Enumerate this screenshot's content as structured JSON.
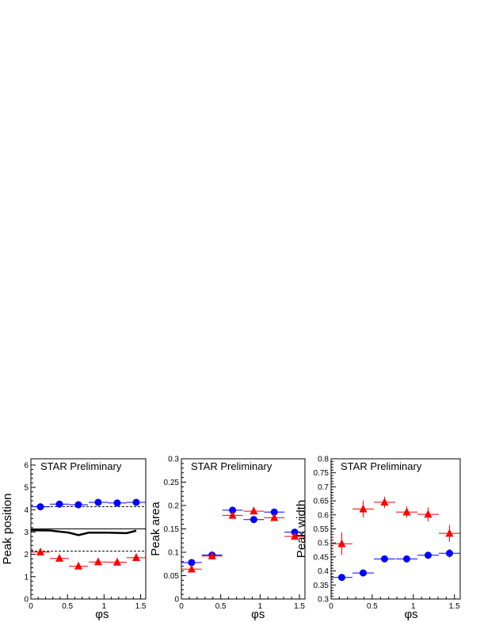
{
  "chart_data": [
    {
      "type": "scatter",
      "label": "STAR Preliminary",
      "ylabel": "Peak position",
      "xlabel": "φs",
      "xlim": [
        0,
        1.57
      ],
      "ylim": [
        0,
        6.28
      ],
      "xticks": [
        "0",
        "0.5",
        "1",
        "1.5"
      ],
      "yticks": [
        "0",
        "1",
        "2",
        "3",
        "4",
        "5",
        "6"
      ],
      "series": [
        {
          "marker": "circle",
          "color": "#0000ff",
          "x": [
            0.13,
            0.39,
            0.65,
            0.92,
            1.18,
            1.44
          ],
          "y": [
            4.13,
            4.25,
            4.22,
            4.33,
            4.3,
            4.33
          ],
          "xerr": 0.13,
          "yerr": [
            0.06,
            0.06,
            0.06,
            0.06,
            0.06,
            0.06
          ]
        },
        {
          "marker": "triangle",
          "color": "#ff0000",
          "x": [
            0.13,
            0.39,
            0.65,
            0.92,
            1.18,
            1.44
          ],
          "y": [
            2.1,
            1.82,
            1.47,
            1.66,
            1.65,
            1.85
          ],
          "xerr": 0.13,
          "yerr": [
            0.06,
            0.06,
            0.06,
            0.06,
            0.06,
            0.06
          ]
        }
      ],
      "reference_lines": [
        {
          "y": 3.14,
          "style": "solid",
          "color": "#000000"
        },
        {
          "y": 4.14,
          "style": "dashed",
          "color": "#000000"
        },
        {
          "y": 2.14,
          "style": "dashed",
          "color": "#000000"
        }
      ],
      "curve": {
        "color": "#000000",
        "x": [
          0.0,
          0.26,
          0.52,
          0.65,
          0.79,
          1.05,
          1.31,
          1.44
        ],
        "y": [
          3.08,
          3.07,
          2.97,
          2.86,
          2.97,
          2.97,
          2.95,
          3.06
        ]
      }
    },
    {
      "type": "scatter",
      "label": "STAR Preliminary",
      "ylabel": "Peak area",
      "xlabel": "φs",
      "xlim": [
        0,
        1.57
      ],
      "ylim": [
        0,
        0.3
      ],
      "xticks": [
        "0",
        "0.5",
        "1",
        "1.5"
      ],
      "yticks": [
        "0",
        "0.05",
        "0.1",
        "0.15",
        "0.2",
        "0.25",
        "0.3"
      ],
      "series": [
        {
          "marker": "circle",
          "color": "#0000ff",
          "x": [
            0.13,
            0.39,
            0.65,
            0.92,
            1.18,
            1.44
          ],
          "y": [
            0.078,
            0.094,
            0.19,
            0.17,
            0.186,
            0.143
          ],
          "xerr": 0.13,
          "yerr": [
            0.003,
            0.003,
            0.003,
            0.003,
            0.003,
            0.003
          ]
        },
        {
          "marker": "triangle",
          "color": "#ff0000",
          "x": [
            0.13,
            0.39,
            0.65,
            0.92,
            1.18,
            1.44
          ],
          "y": [
            0.064,
            0.092,
            0.179,
            0.188,
            0.174,
            0.134
          ],
          "xerr": 0.13,
          "yerr": [
            0.003,
            0.003,
            0.003,
            0.003,
            0.003,
            0.003
          ]
        }
      ]
    },
    {
      "type": "scatter",
      "label": "STAR Preliminary",
      "ylabel": "Peak width",
      "xlabel": "φs",
      "xlim": [
        0,
        1.57
      ],
      "ylim": [
        0.3,
        0.8
      ],
      "xticks": [
        "0",
        "0.5",
        "1",
        "1.5"
      ],
      "yticks": [
        "0.3",
        "0.35",
        "0.4",
        "0.45",
        "0.5",
        "0.55",
        "0.6",
        "0.65",
        "0.7",
        "0.75",
        "0.8"
      ],
      "series": [
        {
          "marker": "circle",
          "color": "#0000ff",
          "x": [
            0.13,
            0.39,
            0.65,
            0.92,
            1.18,
            1.44
          ],
          "y": [
            0.377,
            0.393,
            0.443,
            0.443,
            0.456,
            0.463
          ],
          "xerr": 0.13,
          "yerr": [
            0.012,
            0.012,
            0.01,
            0.01,
            0.01,
            0.015
          ]
        },
        {
          "marker": "triangle",
          "color": "#ff0000",
          "x": [
            0.13,
            0.39,
            0.65,
            0.92,
            1.18,
            1.44
          ],
          "y": [
            0.497,
            0.621,
            0.645,
            0.61,
            0.602,
            0.534
          ],
          "xerr": 0.13,
          "yerr": [
            0.04,
            0.03,
            0.02,
            0.02,
            0.025,
            0.03
          ]
        }
      ]
    }
  ]
}
